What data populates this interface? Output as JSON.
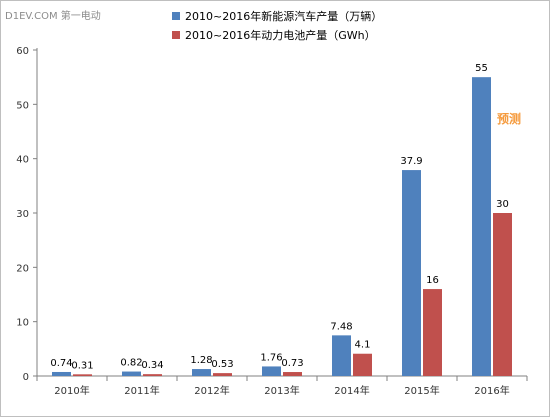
{
  "watermark": {
    "text": "D1EV.COM 第一电动"
  },
  "chart_data": {
    "type": "bar",
    "categories": [
      "2010年",
      "2011年",
      "2012年",
      "2013年",
      "2014年",
      "2015年",
      "2016年"
    ],
    "series": [
      {
        "name": "2010~2016年新能源汽车产量（万辆）",
        "color": "#4f81bd",
        "values": [
          0.74,
          0.82,
          1.28,
          1.76,
          7.48,
          37.9,
          55
        ],
        "labels": [
          "0.74",
          "0.82",
          "1.28",
          "1.76",
          "7.48",
          "37.9",
          "55"
        ]
      },
      {
        "name": "2010~2016年动力电池产量（GWh）",
        "color": "#c0504d",
        "values": [
          0.31,
          0.34,
          0.53,
          0.73,
          4.1,
          16,
          30
        ],
        "labels": [
          "0.31",
          "0.34",
          "0.53",
          "0.73",
          "4.1",
          "16",
          "30"
        ]
      }
    ],
    "ylim": [
      0,
      60
    ],
    "yticks": [
      0,
      10,
      20,
      30,
      40,
      50,
      60
    ],
    "grid": false,
    "legend": "top-center",
    "annotation": {
      "text": "预测",
      "color": "#f59a3c",
      "category": "2016年"
    }
  }
}
